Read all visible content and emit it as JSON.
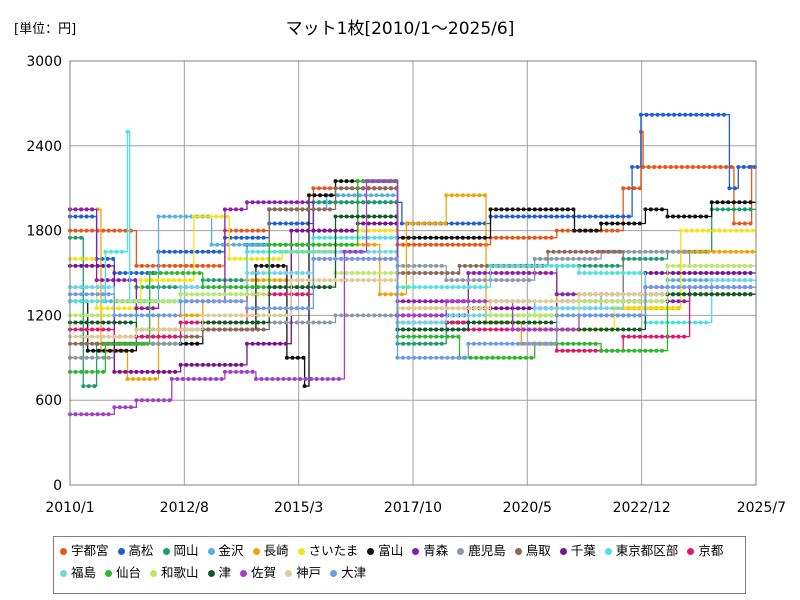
{
  "unit_label": "[単位：円]",
  "chart_data": {
    "type": "line",
    "title": "マット1枚[2010/1～2025/6]",
    "xlabel": "",
    "ylabel": "",
    "ylim": [
      0,
      3000
    ],
    "yticks": [
      0,
      600,
      1200,
      1800,
      2400,
      3000
    ],
    "xlim": [
      2010.0,
      2025.5
    ],
    "xticks": [
      {
        "label": "2010/1",
        "x": 2010.0
      },
      {
        "label": "2012/8",
        "x": 2012.583
      },
      {
        "label": "2015/3",
        "x": 2015.167
      },
      {
        "label": "2017/10",
        "x": 2017.75
      },
      {
        "label": "2020/5",
        "x": 2020.333
      },
      {
        "label": "2022/12",
        "x": 2022.917
      },
      {
        "label": "2025/7",
        "x": 2025.5
      }
    ],
    "grid": true,
    "legend_position": "bottom",
    "series": [
      {
        "name": "宇都宮",
        "color": "#e8561a",
        "x": [
          2010.0,
          2011.5,
          2011.5,
          2013.5,
          2013.5,
          2014.5,
          2014.5,
          2015.5,
          2015.5,
          2017.4,
          2017.4,
          2019.5,
          2019.5,
          2021.0,
          2021.0,
          2022.5,
          2022.5,
          2022.9,
          2022.9,
          2022.95,
          2022.95,
          2025.0,
          2025.0,
          2025.4,
          2025.4,
          2025.5
        ],
        "y": [
          1800,
          1800,
          1550,
          1550,
          1800,
          1800,
          1950,
          1950,
          2100,
          2100,
          1700,
          1700,
          1750,
          1750,
          1800,
          1800,
          2100,
          2100,
          2500,
          2500,
          2250,
          2250,
          1850,
          1850,
          2250,
          2250
        ]
      },
      {
        "name": "高松",
        "color": "#1f5fd6",
        "x": [
          2010.0,
          2010.6,
          2010.6,
          2011.0,
          2011.0,
          2012.0,
          2012.0,
          2013.5,
          2013.5,
          2014.5,
          2014.5,
          2015.5,
          2015.5,
          2017.5,
          2017.5,
          2019.5,
          2019.5,
          2021.5,
          2021.5,
          2022.7,
          2022.7,
          2022.9,
          2022.9,
          2024.9,
          2024.9,
          2025.1,
          2025.1,
          2025.5
        ],
        "y": [
          1900,
          1900,
          1600,
          1600,
          1500,
          1500,
          1650,
          1650,
          1750,
          1750,
          1850,
          1850,
          2000,
          2000,
          1850,
          1850,
          1900,
          1900,
          1900,
          1900,
          2250,
          2250,
          2620,
          2620,
          2100,
          2100,
          2250,
          2250
        ]
      },
      {
        "name": "岡山",
        "color": "#1b9e6e",
        "x": [
          2010.0,
          2010.3,
          2010.3,
          2010.6,
          2010.6,
          2011.5,
          2011.5,
          2013.0,
          2013.0,
          2014.0,
          2014.0,
          2015.5,
          2015.5,
          2017.4,
          2017.4,
          2018.5,
          2018.5,
          2020.0,
          2020.0,
          2021.0,
          2021.0,
          2022.5,
          2022.5,
          2023.5,
          2023.5,
          2024.5,
          2024.5,
          2025.5
        ],
        "y": [
          1750,
          1750,
          700,
          700,
          1000,
          1000,
          1400,
          1400,
          1450,
          1450,
          1700,
          1700,
          2000,
          2000,
          1000,
          1000,
          1150,
          1150,
          1200,
          1200,
          1550,
          1550,
          1600,
          1600,
          1650,
          1650,
          1950,
          1950
        ]
      },
      {
        "name": "金沢",
        "color": "#58aee6",
        "x": [
          2010.0,
          2010.8,
          2010.8,
          2012.0,
          2012.0,
          2013.2,
          2013.2,
          2014.5,
          2014.5,
          2015.8,
          2015.8,
          2017.4,
          2017.4,
          2019.0,
          2019.0,
          2020.5,
          2020.5,
          2022.0,
          2022.0,
          2023.5,
          2023.5,
          2025.5
        ],
        "y": [
          1400,
          1400,
          1300,
          1300,
          1900,
          1900,
          1700,
          1700,
          1950,
          1950,
          2050,
          2050,
          1100,
          1100,
          1300,
          1300,
          1250,
          1250,
          1350,
          1350,
          1450,
          1450
        ]
      },
      {
        "name": "長崎",
        "color": "#f0a40a",
        "x": [
          2010.0,
          2010.7,
          2010.7,
          2011.3,
          2011.3,
          2012.0,
          2012.0,
          2013.0,
          2013.0,
          2014.0,
          2014.0,
          2015.0,
          2015.0,
          2017.0,
          2017.0,
          2017.6,
          2017.6,
          2018.5,
          2018.5,
          2019.4,
          2019.4,
          2020.2,
          2020.2,
          2021.0,
          2021.0,
          2022.5,
          2022.5,
          2023.8,
          2023.8,
          2025.5
        ],
        "y": [
          1950,
          1950,
          950,
          950,
          750,
          750,
          1200,
          1200,
          1300,
          1300,
          1450,
          1450,
          1700,
          1700,
          1350,
          1350,
          1850,
          1850,
          2050,
          2050,
          1150,
          1150,
          1000,
          1000,
          1350,
          1350,
          1250,
          1250,
          1650,
          1650
        ]
      },
      {
        "name": "さいたま",
        "color": "#f5e21a",
        "x": [
          2010.0,
          2010.6,
          2010.6,
          2011.6,
          2011.6,
          2012.8,
          2012.8,
          2013.6,
          2013.6,
          2014.8,
          2014.8,
          2016.0,
          2016.0,
          2017.4,
          2017.4,
          2019.0,
          2019.0,
          2020.6,
          2020.6,
          2022.3,
          2022.3,
          2023.8,
          2023.8,
          2025.5
        ],
        "y": [
          1600,
          1600,
          1250,
          1250,
          1450,
          1450,
          1900,
          1900,
          1600,
          1600,
          1650,
          1650,
          1800,
          1800,
          1250,
          1250,
          1200,
          1200,
          1100,
          1100,
          1250,
          1250,
          1800,
          1800
        ]
      },
      {
        "name": "富山",
        "color": "#111111",
        "x": [
          2010.0,
          2010.4,
          2010.4,
          2011.5,
          2011.5,
          2013.0,
          2013.0,
          2014.2,
          2014.2,
          2014.9,
          2014.9,
          2015.3,
          2015.3,
          2015.4,
          2015.4,
          2016.0,
          2016.0,
          2017.4,
          2017.4,
          2018.5,
          2018.5,
          2019.5,
          2019.5,
          2021.4,
          2021.4,
          2022.0,
          2022.0,
          2023.0,
          2023.0,
          2023.5,
          2023.5,
          2024.5,
          2024.5,
          2025.5
        ],
        "y": [
          1300,
          1300,
          950,
          950,
          1000,
          1000,
          1100,
          1100,
          1550,
          1550,
          900,
          900,
          700,
          700,
          2050,
          2050,
          2150,
          2150,
          1750,
          1750,
          1750,
          1750,
          1950,
          1950,
          1800,
          1800,
          1850,
          1850,
          1950,
          1950,
          1900,
          1900,
          2000,
          2000
        ]
      },
      {
        "name": "青森",
        "color": "#8e1fae",
        "x": [
          2010.0,
          2010.6,
          2010.6,
          2011.5,
          2011.5,
          2012.0,
          2012.0,
          2013.5,
          2013.5,
          2014.0,
          2014.0,
          2015.5,
          2015.5,
          2016.5,
          2016.5,
          2017.4,
          2017.4,
          2019.0,
          2019.0,
          2021.0,
          2021.0,
          2022.5,
          2022.5,
          2024.0,
          2024.0,
          2025.5
        ],
        "y": [
          1950,
          1950,
          1450,
          1450,
          1250,
          1250,
          1300,
          1300,
          1950,
          1950,
          2000,
          2000,
          1800,
          1800,
          2100,
          2100,
          1300,
          1300,
          1500,
          1500,
          1350,
          1350,
          1300,
          1300,
          1350,
          1350
        ]
      },
      {
        "name": "鹿児島",
        "color": "#8c99a6",
        "x": [
          2010.0,
          2011.0,
          2011.0,
          2012.5,
          2012.5,
          2014.5,
          2014.5,
          2016.0,
          2016.0,
          2017.4,
          2017.4,
          2018.5,
          2018.5,
          2020.5,
          2020.5,
          2022.0,
          2022.0,
          2024.0,
          2024.0,
          2025.5
        ],
        "y": [
          900,
          900,
          1000,
          1000,
          1100,
          1100,
          1150,
          1150,
          1200,
          1200,
          1550,
          1550,
          1450,
          1450,
          1600,
          1600,
          1650,
          1650,
          1550,
          1550
        ]
      },
      {
        "name": "鳥取",
        "color": "#8c6a5a",
        "x": [
          2010.0,
          2011.5,
          2011.5,
          2013.0,
          2013.0,
          2014.5,
          2014.5,
          2016.0,
          2016.0,
          2017.4,
          2017.4,
          2018.8,
          2018.8,
          2020.8,
          2020.8,
          2022.5,
          2022.5,
          2025.5
        ],
        "y": [
          1000,
          1000,
          1050,
          1050,
          1100,
          1100,
          1950,
          1950,
          2100,
          2100,
          1500,
          1500,
          1550,
          1550,
          1650,
          1650,
          1350,
          1350
        ]
      },
      {
        "name": "千葉",
        "color": "#7b1090",
        "x": [
          2010.0,
          2011.0,
          2011.0,
          2012.5,
          2012.5,
          2014.0,
          2014.0,
          2015.0,
          2015.0,
          2016.5,
          2016.5,
          2017.4,
          2017.4,
          2019.0,
          2019.0,
          2021.0,
          2021.0,
          2023.0,
          2023.0,
          2025.5
        ],
        "y": [
          1550,
          1550,
          800,
          800,
          850,
          850,
          1000,
          1000,
          1800,
          1800,
          1850,
          1850,
          1200,
          1200,
          1250,
          1250,
          1300,
          1300,
          1500,
          1500
        ]
      },
      {
        "name": "東京都区部",
        "color": "#4fe0e0",
        "x": [
          2010.0,
          2010.8,
          2010.8,
          2011.3,
          2011.3,
          2011.35,
          2011.35,
          2012.5,
          2012.5,
          2014.0,
          2014.0,
          2015.5,
          2015.5,
          2017.4,
          2017.4,
          2019.5,
          2019.5,
          2021.5,
          2021.5,
          2023.0,
          2023.0,
          2024.5,
          2024.5,
          2025.5
        ],
        "y": [
          1300,
          1300,
          1650,
          1650,
          2500,
          2500,
          1300,
          1300,
          1350,
          1350,
          1650,
          1650,
          1750,
          1750,
          1400,
          1400,
          1550,
          1550,
          1500,
          1500,
          1150,
          1150,
          1400,
          1400
        ]
      },
      {
        "name": "京都",
        "color": "#e0186a",
        "x": [
          2010.0,
          2011.0,
          2011.0,
          2012.5,
          2012.5,
          2014.0,
          2014.0,
          2015.5,
          2015.5,
          2017.4,
          2017.4,
          2019.0,
          2019.0,
          2021.0,
          2021.0,
          2022.5,
          2022.5,
          2024.0,
          2024.0,
          2025.5
        ],
        "y": [
          1100,
          1100,
          1050,
          1050,
          1150,
          1150,
          1350,
          1350,
          1600,
          1600,
          1150,
          1150,
          1100,
          1100,
          950,
          950,
          1050,
          1050,
          1400,
          1400
        ]
      },
      {
        "name": "福島",
        "color": "#6fd5e8",
        "x": [
          2010.0,
          2011.0,
          2011.0,
          2012.5,
          2012.5,
          2014.0,
          2014.0,
          2015.5,
          2015.5,
          2017.4,
          2017.4,
          2018.5,
          2018.5,
          2020.5,
          2020.5,
          2022.5,
          2022.5,
          2024.5,
          2024.5,
          2025.5
        ],
        "y": [
          1400,
          1400,
          1300,
          1300,
          1400,
          1400,
          1500,
          1500,
          1650,
          1650,
          1150,
          1150,
          1200,
          1200,
          1250,
          1250,
          1350,
          1350,
          1450,
          1450
        ]
      },
      {
        "name": "仙台",
        "color": "#2cb82c",
        "x": [
          2010.0,
          2010.8,
          2010.8,
          2011.8,
          2011.8,
          2013.0,
          2013.0,
          2014.5,
          2014.5,
          2016.5,
          2016.5,
          2017.4,
          2017.4,
          2018.8,
          2018.8,
          2020.5,
          2020.5,
          2022.0,
          2022.0,
          2023.5,
          2023.5,
          2025.5
        ],
        "y": [
          800,
          800,
          1000,
          1000,
          1500,
          1500,
          1400,
          1400,
          1700,
          1700,
          2150,
          2150,
          1050,
          1050,
          900,
          900,
          1000,
          1000,
          950,
          950,
          1350,
          1350
        ]
      },
      {
        "name": "和歌山",
        "color": "#bce86a",
        "x": [
          2010.0,
          2011.0,
          2011.0,
          2012.5,
          2012.5,
          2014.5,
          2014.5,
          2016.0,
          2016.0,
          2017.4,
          2017.4,
          2019.5,
          2019.5,
          2021.5,
          2021.5,
          2023.5,
          2023.5,
          2025.5
        ],
        "y": [
          1200,
          1200,
          1300,
          1300,
          1350,
          1350,
          1400,
          1400,
          1500,
          1500,
          1250,
          1250,
          1200,
          1200,
          1300,
          1300,
          1550,
          1550
        ]
      },
      {
        "name": "津",
        "color": "#15582a",
        "x": [
          2010.0,
          2011.5,
          2011.5,
          2013.0,
          2013.0,
          2014.5,
          2014.5,
          2016.0,
          2016.0,
          2017.4,
          2017.4,
          2019.0,
          2019.0,
          2021.0,
          2021.0,
          2023.0,
          2023.0,
          2025.5
        ],
        "y": [
          1150,
          1150,
          1100,
          1100,
          1150,
          1150,
          1400,
          1400,
          1900,
          1900,
          1100,
          1100,
          1150,
          1150,
          1100,
          1100,
          1350,
          1350
        ]
      },
      {
        "name": "佐賀",
        "color": "#a73cc9",
        "x": [
          2010.0,
          2011.0,
          2011.0,
          2011.5,
          2011.5,
          2012.3,
          2012.3,
          2013.5,
          2013.5,
          2014.2,
          2014.2,
          2016.2,
          2016.2,
          2016.7,
          2016.7,
          2017.4,
          2017.4,
          2018.5,
          2018.5,
          2020.0,
          2020.0,
          2021.5,
          2021.5,
          2023.0,
          2023.0,
          2025.5
        ],
        "y": [
          500,
          500,
          550,
          550,
          600,
          600,
          750,
          750,
          800,
          800,
          750,
          750,
          1650,
          1650,
          2150,
          2150,
          1200,
          1200,
          1300,
          1300,
          1100,
          1100,
          1200,
          1200,
          1400,
          1400
        ]
      },
      {
        "name": "神戸",
        "color": "#e2ca93",
        "x": [
          2010.0,
          2011.5,
          2011.5,
          2013.0,
          2013.0,
          2015.0,
          2015.0,
          2017.4,
          2017.4,
          2019.5,
          2019.5,
          2021.5,
          2021.5,
          2023.5,
          2023.5,
          2025.5
        ],
        "y": [
          1050,
          1050,
          1100,
          1100,
          1200,
          1200,
          1450,
          1450,
          1250,
          1250,
          1300,
          1300,
          1350,
          1350,
          1400,
          1400
        ]
      },
      {
        "name": "大津",
        "color": "#6c9ce8",
        "x": [
          2010.0,
          2011.0,
          2011.0,
          2012.5,
          2012.5,
          2014.0,
          2014.0,
          2015.5,
          2015.5,
          2017.4,
          2017.4,
          2019.0,
          2019.0,
          2021.0,
          2021.0,
          2023.0,
          2023.0,
          2025.5
        ],
        "y": [
          1350,
          1350,
          1200,
          1200,
          1300,
          1300,
          1250,
          1250,
          1600,
          1600,
          900,
          900,
          1000,
          1000,
          1200,
          1200,
          1400,
          1400
        ]
      }
    ]
  }
}
